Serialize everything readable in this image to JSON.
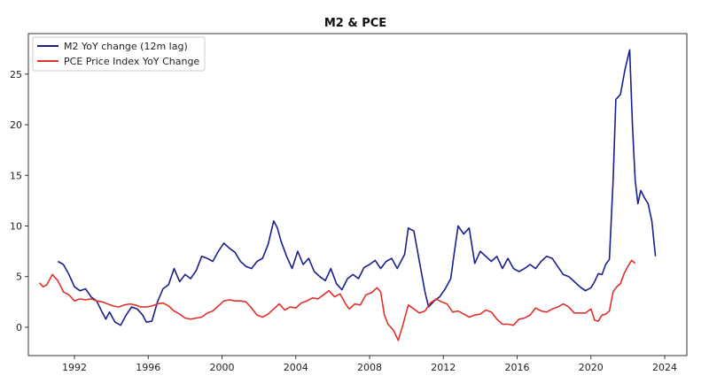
{
  "chart_data": {
    "type": "line",
    "title": "M2 & PCE",
    "xlabel": "",
    "ylabel": "",
    "xlim": [
      1989.5,
      2025.2
    ],
    "ylim": [
      -2.8,
      29
    ],
    "xticks": [
      1992,
      1996,
      2000,
      2004,
      2008,
      2012,
      2016,
      2020,
      2024
    ],
    "yticks": [
      0,
      5,
      10,
      15,
      20,
      25
    ],
    "grid": false,
    "legend_position": "top-left",
    "series": [
      {
        "name": "M2 YoY change (12m lag)",
        "color": "#1a1f8c",
        "points": [
          [
            1991.1,
            6.5
          ],
          [
            1991.4,
            6.2
          ],
          [
            1991.7,
            5.2
          ],
          [
            1992.0,
            4.0
          ],
          [
            1992.3,
            3.6
          ],
          [
            1992.6,
            3.8
          ],
          [
            1992.9,
            3.0
          ],
          [
            1993.2,
            2.6
          ],
          [
            1993.5,
            1.5
          ],
          [
            1993.7,
            0.8
          ],
          [
            1993.9,
            1.5
          ],
          [
            1994.2,
            0.5
          ],
          [
            1994.5,
            0.2
          ],
          [
            1994.8,
            1.2
          ],
          [
            1995.1,
            2.0
          ],
          [
            1995.4,
            1.8
          ],
          [
            1995.7,
            1.2
          ],
          [
            1995.9,
            0.5
          ],
          [
            1996.2,
            0.6
          ],
          [
            1996.5,
            2.5
          ],
          [
            1996.8,
            3.8
          ],
          [
            1997.1,
            4.2
          ],
          [
            1997.4,
            5.8
          ],
          [
            1997.7,
            4.5
          ],
          [
            1998.0,
            5.2
          ],
          [
            1998.3,
            4.8
          ],
          [
            1998.6,
            5.6
          ],
          [
            1998.9,
            7.0
          ],
          [
            1999.2,
            6.8
          ],
          [
            1999.5,
            6.5
          ],
          [
            1999.8,
            7.5
          ],
          [
            2000.1,
            8.3
          ],
          [
            2000.4,
            7.8
          ],
          [
            2000.7,
            7.4
          ],
          [
            2001.0,
            6.5
          ],
          [
            2001.3,
            6.0
          ],
          [
            2001.6,
            5.8
          ],
          [
            2001.9,
            6.5
          ],
          [
            2002.2,
            6.8
          ],
          [
            2002.5,
            8.2
          ],
          [
            2002.8,
            10.5
          ],
          [
            2003.0,
            9.8
          ],
          [
            2003.2,
            8.5
          ],
          [
            2003.5,
            7.0
          ],
          [
            2003.8,
            5.8
          ],
          [
            2004.1,
            7.5
          ],
          [
            2004.4,
            6.2
          ],
          [
            2004.7,
            6.8
          ],
          [
            2005.0,
            5.5
          ],
          [
            2005.3,
            5.0
          ],
          [
            2005.6,
            4.6
          ],
          [
            2005.9,
            5.8
          ],
          [
            2006.2,
            4.3
          ],
          [
            2006.5,
            3.7
          ],
          [
            2006.8,
            4.8
          ],
          [
            2007.1,
            5.2
          ],
          [
            2007.4,
            4.8
          ],
          [
            2007.7,
            5.9
          ],
          [
            2008.0,
            6.2
          ],
          [
            2008.3,
            6.6
          ],
          [
            2008.6,
            5.8
          ],
          [
            2008.9,
            6.5
          ],
          [
            2009.2,
            6.8
          ],
          [
            2009.5,
            5.8
          ],
          [
            2009.7,
            6.5
          ],
          [
            2009.9,
            7.2
          ],
          [
            2010.1,
            9.8
          ],
          [
            2010.4,
            9.5
          ],
          [
            2010.7,
            6.5
          ],
          [
            2011.0,
            3.5
          ],
          [
            2011.2,
            2.0
          ],
          [
            2011.5,
            2.6
          ],
          [
            2011.8,
            3.0
          ],
          [
            2012.1,
            3.8
          ],
          [
            2012.4,
            4.8
          ],
          [
            2012.6,
            7.5
          ],
          [
            2012.8,
            10.0
          ],
          [
            2013.1,
            9.2
          ],
          [
            2013.4,
            9.8
          ],
          [
            2013.7,
            6.3
          ],
          [
            2014.0,
            7.5
          ],
          [
            2014.3,
            7.0
          ],
          [
            2014.6,
            6.5
          ],
          [
            2014.9,
            7.0
          ],
          [
            2015.2,
            5.8
          ],
          [
            2015.5,
            6.8
          ],
          [
            2015.8,
            5.8
          ],
          [
            2016.1,
            5.5
          ],
          [
            2016.4,
            5.8
          ],
          [
            2016.7,
            6.2
          ],
          [
            2017.0,
            5.8
          ],
          [
            2017.3,
            6.5
          ],
          [
            2017.6,
            7.0
          ],
          [
            2017.9,
            6.8
          ],
          [
            2018.2,
            6.0
          ],
          [
            2018.5,
            5.2
          ],
          [
            2018.8,
            5.0
          ],
          [
            2019.1,
            4.5
          ],
          [
            2019.4,
            4.0
          ],
          [
            2019.7,
            3.6
          ],
          [
            2020.0,
            3.9
          ],
          [
            2020.2,
            4.5
          ],
          [
            2020.4,
            5.3
          ],
          [
            2020.6,
            5.2
          ],
          [
            2020.8,
            6.2
          ],
          [
            2021.0,
            6.7
          ],
          [
            2021.2,
            14.5
          ],
          [
            2021.35,
            22.5
          ],
          [
            2021.6,
            23.0
          ],
          [
            2021.85,
            25.5
          ],
          [
            2022.1,
            27.4
          ],
          [
            2022.25,
            20.0
          ],
          [
            2022.4,
            14.5
          ],
          [
            2022.55,
            12.2
          ],
          [
            2022.7,
            13.5
          ],
          [
            2022.9,
            12.8
          ],
          [
            2023.1,
            12.2
          ],
          [
            2023.3,
            10.5
          ],
          [
            2023.5,
            7.0
          ]
        ]
      },
      {
        "name": "PCE Price Index YoY Change",
        "color": "#e0302c",
        "points": [
          [
            1990.1,
            4.4
          ],
          [
            1990.3,
            4.0
          ],
          [
            1990.5,
            4.2
          ],
          [
            1990.8,
            5.2
          ],
          [
            1991.1,
            4.6
          ],
          [
            1991.4,
            3.5
          ],
          [
            1991.7,
            3.2
          ],
          [
            1992.0,
            2.6
          ],
          [
            1992.3,
            2.8
          ],
          [
            1992.6,
            2.7
          ],
          [
            1992.9,
            2.8
          ],
          [
            1993.2,
            2.6
          ],
          [
            1993.5,
            2.5
          ],
          [
            1993.8,
            2.3
          ],
          [
            1994.1,
            2.1
          ],
          [
            1994.4,
            2.0
          ],
          [
            1994.7,
            2.2
          ],
          [
            1995.0,
            2.3
          ],
          [
            1995.3,
            2.2
          ],
          [
            1995.6,
            2.0
          ],
          [
            1995.9,
            2.0
          ],
          [
            1996.2,
            2.1
          ],
          [
            1996.5,
            2.3
          ],
          [
            1996.8,
            2.4
          ],
          [
            1997.1,
            2.1
          ],
          [
            1997.4,
            1.6
          ],
          [
            1997.7,
            1.3
          ],
          [
            1998.0,
            0.9
          ],
          [
            1998.3,
            0.8
          ],
          [
            1998.6,
            0.9
          ],
          [
            1998.9,
            1.0
          ],
          [
            1999.2,
            1.4
          ],
          [
            1999.5,
            1.6
          ],
          [
            1999.8,
            2.1
          ],
          [
            2000.1,
            2.6
          ],
          [
            2000.4,
            2.7
          ],
          [
            2000.7,
            2.6
          ],
          [
            2001.0,
            2.6
          ],
          [
            2001.3,
            2.5
          ],
          [
            2001.6,
            1.9
          ],
          [
            2001.9,
            1.2
          ],
          [
            2002.2,
            1.0
          ],
          [
            2002.5,
            1.3
          ],
          [
            2002.8,
            1.8
          ],
          [
            2003.1,
            2.3
          ],
          [
            2003.4,
            1.7
          ],
          [
            2003.7,
            2.0
          ],
          [
            2004.0,
            1.9
          ],
          [
            2004.3,
            2.4
          ],
          [
            2004.6,
            2.6
          ],
          [
            2004.9,
            2.9
          ],
          [
            2005.2,
            2.8
          ],
          [
            2005.5,
            3.2
          ],
          [
            2005.8,
            3.6
          ],
          [
            2006.1,
            3.0
          ],
          [
            2006.4,
            3.3
          ],
          [
            2006.7,
            2.3
          ],
          [
            2006.9,
            1.8
          ],
          [
            2007.2,
            2.3
          ],
          [
            2007.5,
            2.2
          ],
          [
            2007.8,
            3.2
          ],
          [
            2008.1,
            3.4
          ],
          [
            2008.4,
            3.9
          ],
          [
            2008.6,
            3.5
          ],
          [
            2008.8,
            1.2
          ],
          [
            2009.0,
            0.3
          ],
          [
            2009.3,
            -0.3
          ],
          [
            2009.55,
            -1.3
          ],
          [
            2009.8,
            0.2
          ],
          [
            2010.1,
            2.2
          ],
          [
            2010.4,
            1.8
          ],
          [
            2010.7,
            1.4
          ],
          [
            2011.0,
            1.6
          ],
          [
            2011.3,
            2.4
          ],
          [
            2011.6,
            2.8
          ],
          [
            2011.9,
            2.5
          ],
          [
            2012.2,
            2.3
          ],
          [
            2012.5,
            1.5
          ],
          [
            2012.8,
            1.6
          ],
          [
            2013.1,
            1.3
          ],
          [
            2013.4,
            1.0
          ],
          [
            2013.7,
            1.2
          ],
          [
            2014.0,
            1.3
          ],
          [
            2014.3,
            1.7
          ],
          [
            2014.6,
            1.5
          ],
          [
            2014.9,
            0.8
          ],
          [
            2015.2,
            0.3
          ],
          [
            2015.5,
            0.3
          ],
          [
            2015.8,
            0.2
          ],
          [
            2016.1,
            0.8
          ],
          [
            2016.4,
            0.9
          ],
          [
            2016.7,
            1.2
          ],
          [
            2017.0,
            1.9
          ],
          [
            2017.3,
            1.6
          ],
          [
            2017.6,
            1.5
          ],
          [
            2017.9,
            1.8
          ],
          [
            2018.2,
            2.0
          ],
          [
            2018.5,
            2.3
          ],
          [
            2018.8,
            2.0
          ],
          [
            2019.1,
            1.4
          ],
          [
            2019.4,
            1.4
          ],
          [
            2019.7,
            1.4
          ],
          [
            2020.0,
            1.8
          ],
          [
            2020.2,
            0.7
          ],
          [
            2020.4,
            0.6
          ],
          [
            2020.6,
            1.2
          ],
          [
            2020.8,
            1.3
          ],
          [
            2021.0,
            1.6
          ],
          [
            2021.2,
            3.5
          ],
          [
            2021.4,
            4.0
          ],
          [
            2021.6,
            4.3
          ],
          [
            2021.8,
            5.3
          ],
          [
            2022.0,
            6.0
          ],
          [
            2022.2,
            6.6
          ],
          [
            2022.4,
            6.3
          ]
        ]
      }
    ]
  }
}
